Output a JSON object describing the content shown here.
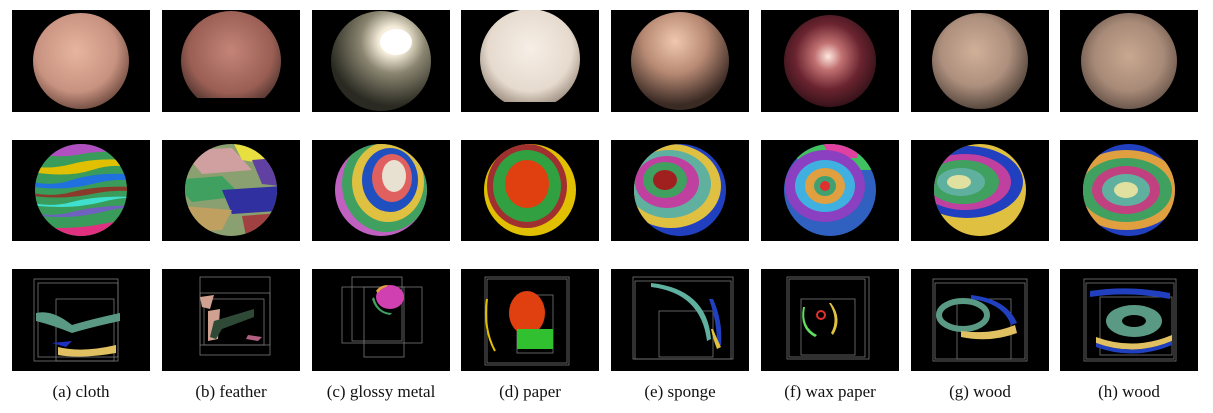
{
  "captions": [
    "(a) cloth",
    "(b) feather",
    "(c) glossy metal",
    "(d) paper",
    "(e) sponge",
    "(f) wax paper",
    "(g) wood",
    "(h) wood"
  ]
}
